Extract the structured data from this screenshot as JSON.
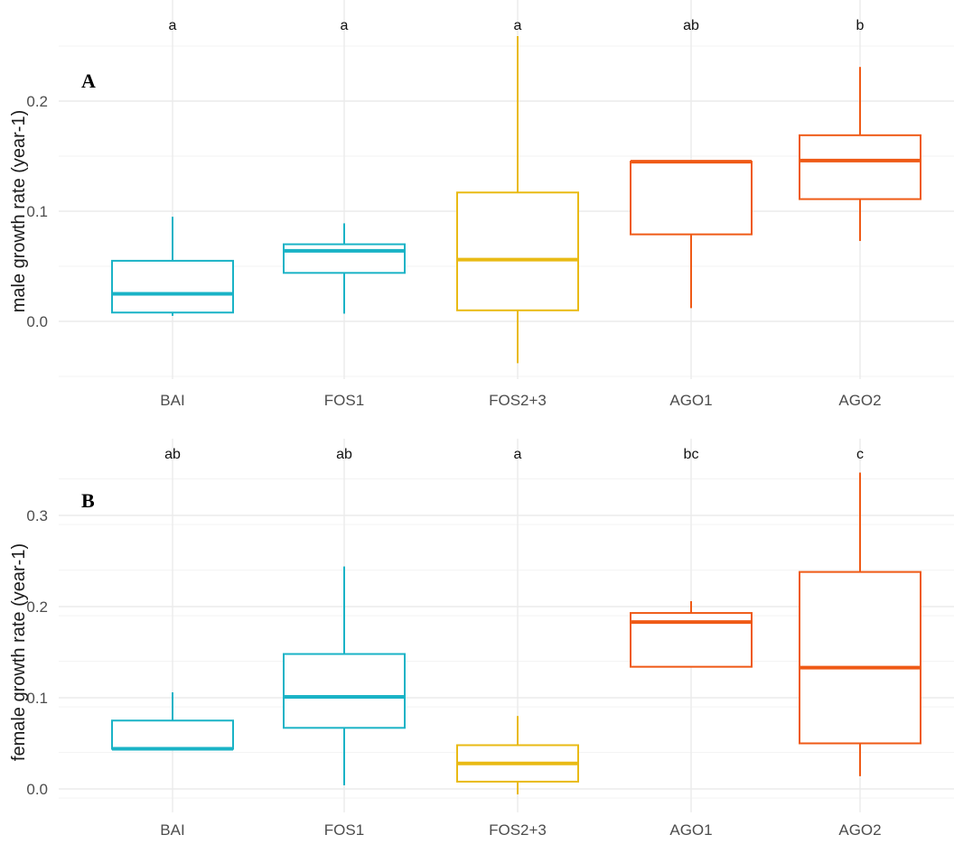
{
  "chart_data": [
    {
      "panel_label": "A",
      "type": "box",
      "ylabel": "male growth rate (year-1)",
      "categories": [
        "BAI",
        "FOS1",
        "FOS2+3",
        "AGO1",
        "AGO2"
      ],
      "ylim": [
        -0.05,
        0.25
      ],
      "yticks": [
        0.0,
        0.1,
        0.2
      ],
      "ytick_labels": [
        "0.0",
        "0.1",
        "0.2"
      ],
      "grid": true,
      "boxes": [
        {
          "category": "BAI",
          "whisker_low": 0.005,
          "q1": 0.008,
          "median": 0.025,
          "q3": 0.055,
          "whisker_high": 0.095,
          "letter": "a",
          "color": "#1ab3c6"
        },
        {
          "category": "FOS1",
          "whisker_low": 0.007,
          "q1": 0.044,
          "median": 0.064,
          "q3": 0.07,
          "whisker_high": 0.089,
          "letter": "a",
          "color": "#1ab3c6"
        },
        {
          "category": "FOS2+3",
          "whisker_low": -0.038,
          "q1": 0.01,
          "median": 0.056,
          "q3": 0.117,
          "whisker_high": 0.259,
          "letter": "a",
          "color": "#e9ba14"
        },
        {
          "category": "AGO1",
          "whisker_low": 0.012,
          "q1": 0.079,
          "median": 0.145,
          "q3": 0.145,
          "whisker_high": 0.145,
          "letter": "ab",
          "color": "#ef5a16"
        },
        {
          "category": "AGO2",
          "whisker_low": 0.073,
          "q1": 0.111,
          "median": 0.146,
          "q3": 0.169,
          "whisker_high": 0.231,
          "letter": "b",
          "color": "#ef5a16"
        }
      ]
    },
    {
      "panel_label": "B",
      "type": "box",
      "ylabel": "female growth rate (year-1)",
      "categories": [
        "BAI",
        "FOS1",
        "FOS2+3",
        "AGO1",
        "AGO2"
      ],
      "ylim": [
        -0.01,
        0.35
      ],
      "yticks": [
        0.0,
        0.1,
        0.2,
        0.3
      ],
      "ytick_labels": [
        "0.0",
        "0.1",
        "0.2",
        "0.3"
      ],
      "grid": true,
      "boxes": [
        {
          "category": "BAI",
          "whisker_low": 0.044,
          "q1": 0.044,
          "median": 0.044,
          "q3": 0.075,
          "whisker_high": 0.106,
          "letter": "ab",
          "color": "#1ab3c6"
        },
        {
          "category": "FOS1",
          "whisker_low": 0.004,
          "q1": 0.067,
          "median": 0.101,
          "q3": 0.148,
          "whisker_high": 0.244,
          "letter": "ab",
          "color": "#1ab3c6"
        },
        {
          "category": "FOS2+3",
          "whisker_low": -0.006,
          "q1": 0.008,
          "median": 0.028,
          "q3": 0.048,
          "whisker_high": 0.08,
          "letter": "a",
          "color": "#e9ba14"
        },
        {
          "category": "AGO1",
          "whisker_low": 0.134,
          "q1": 0.134,
          "median": 0.183,
          "q3": 0.193,
          "whisker_high": 0.206,
          "letter": "bc",
          "color": "#ef5a16"
        },
        {
          "category": "AGO2",
          "whisker_low": 0.014,
          "q1": 0.05,
          "median": 0.133,
          "q3": 0.238,
          "whisker_high": 0.347,
          "letter": "c",
          "color": "#ef5a16"
        }
      ]
    }
  ]
}
